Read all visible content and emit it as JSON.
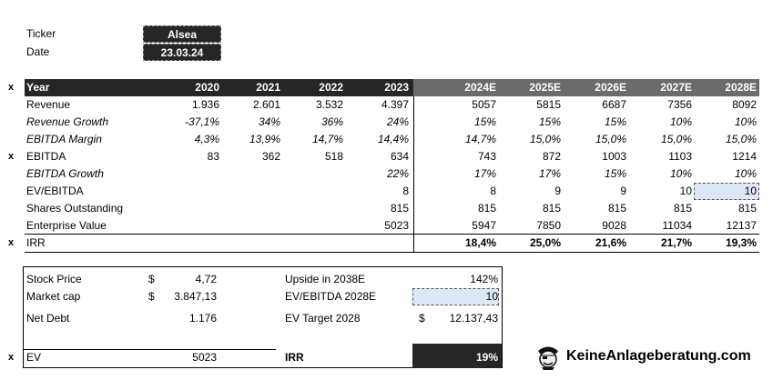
{
  "inputs": {
    "ticker_label": "Ticker",
    "ticker_value": "Alsea",
    "date_label": "Date",
    "date_value": "23.03.24"
  },
  "table": {
    "header_label": "Year",
    "years": [
      "2020",
      "2021",
      "2022",
      "2023",
      "2024E",
      "2025E",
      "2026E",
      "2027E",
      "2028E"
    ],
    "marker": "x",
    "rows": [
      {
        "label": "Revenue",
        "values": [
          "1.936",
          "2.601",
          "3.532",
          "4.397",
          "5057",
          "5815",
          "6687",
          "7356",
          "8092"
        ]
      },
      {
        "label": "Revenue Growth",
        "values": [
          "-37,1%",
          "34%",
          "36%",
          "24%",
          "15%",
          "15%",
          "15%",
          "10%",
          "10%"
        ]
      },
      {
        "label": "EBITDA Margin",
        "values": [
          "4,3%",
          "13,9%",
          "14,7%",
          "14,4%",
          "14,7%",
          "15,0%",
          "15,0%",
          "15,0%",
          "15,0%"
        ]
      },
      {
        "label": "EBITDA",
        "values": [
          "83",
          "362",
          "518",
          "634",
          "743",
          "872",
          "1003",
          "1103",
          "1214"
        ]
      },
      {
        "label": "EBITDA Growth",
        "values": [
          "",
          "",
          "",
          "22%",
          "17%",
          "17%",
          "15%",
          "10%",
          "10%"
        ]
      },
      {
        "label": "EV/EBITDA",
        "values": [
          "",
          "",
          "",
          "8",
          "8",
          "9",
          "9",
          "10",
          "10"
        ]
      },
      {
        "label": "Shares Outstanding",
        "values": [
          "",
          "",
          "",
          "815",
          "815",
          "815",
          "815",
          "815",
          "815"
        ]
      },
      {
        "label": "Enterprise Value",
        "values": [
          "",
          "",
          "",
          "5023",
          "5947",
          "7850",
          "9028",
          "11034",
          "12137"
        ]
      },
      {
        "label": "IRR",
        "values": [
          "",
          "",
          "",
          "",
          "18,4%",
          "25,0%",
          "21,6%",
          "21,7%",
          "19,3%"
        ]
      }
    ]
  },
  "summary": {
    "stock_price_label": "Stock Price",
    "stock_price_currency": "$",
    "stock_price_value": "4,72",
    "market_cap_label": "Market cap",
    "market_cap_currency": "$",
    "market_cap_value": "3.847,13",
    "net_debt_label": "Net Debt",
    "net_debt_value": "1.176",
    "ev_label": "EV",
    "ev_value": "5023",
    "upside_label": "Upside in 2038E",
    "upside_value": "142%",
    "ev_ebitda_label": "EV/EBITDA 2028E",
    "ev_ebitda_value": "10",
    "ev_target_label": "EV Target 2028",
    "ev_target_currency": "$",
    "ev_target_value": "12.137,43",
    "irr_label": "IRR",
    "irr_value": "19%"
  },
  "brand": {
    "name": "KeineAnlageberatung.com",
    "icon": "pirate-mascot-icon"
  },
  "colors": {
    "header_dark": "#262626",
    "header_grey": "#6b6b6b",
    "highlight": "#dce8f5"
  }
}
